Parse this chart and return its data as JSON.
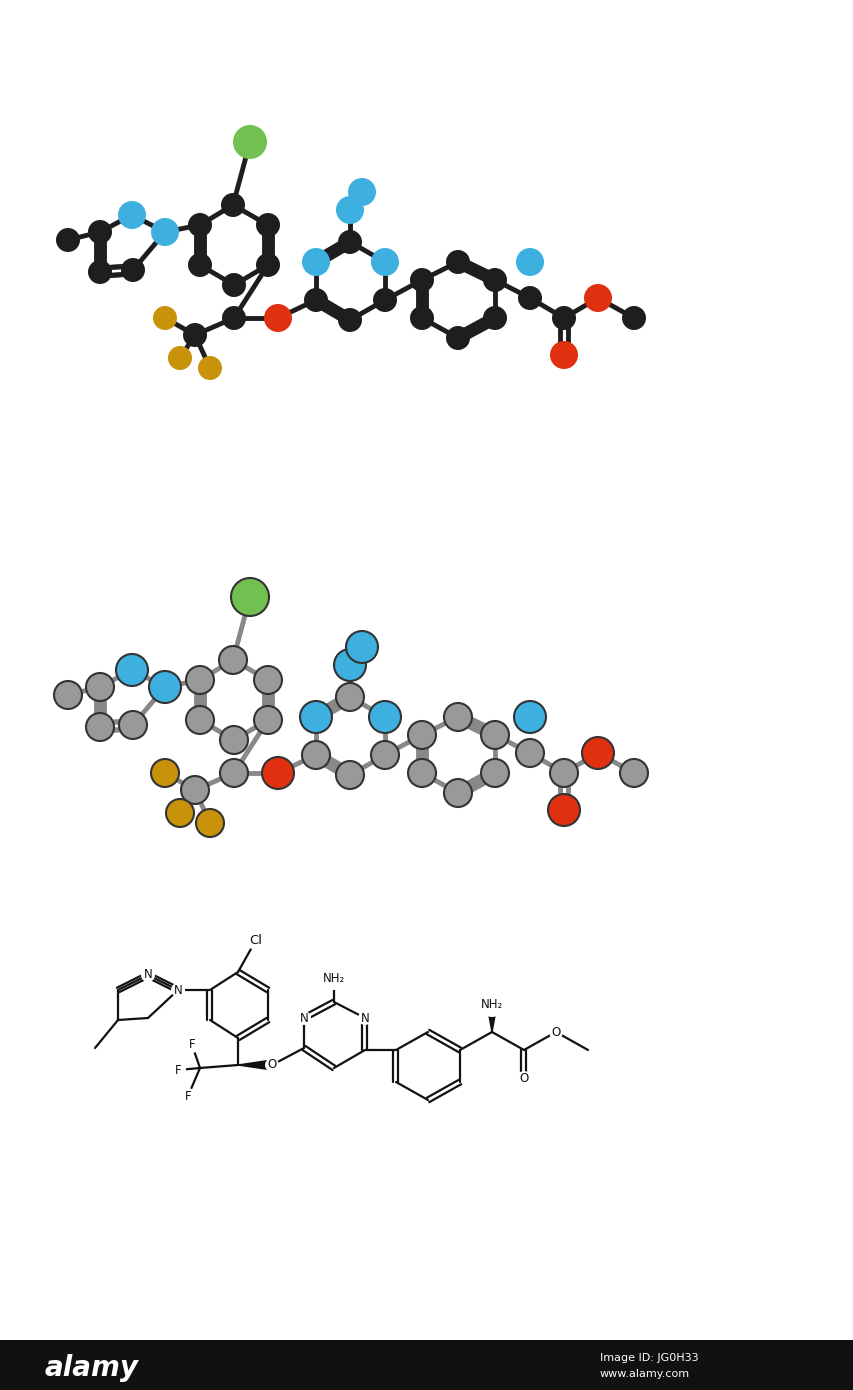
{
  "fig_width": 8.54,
  "fig_height": 13.9,
  "bg_color": "#ffffff",
  "colors": {
    "carbon_dark": "#1e1e1e",
    "carbon_gray": "#999999",
    "nitrogen_blue": "#3db0e0",
    "oxygen_red": "#e03010",
    "fluorine_gold": "#c8920a",
    "chlorine_green": "#72c050"
  },
  "footer_color": "#111111",
  "alamy_text": "alamy",
  "image_id_text": "Image ID: JG0H33",
  "website_text": "www.alamy.com"
}
